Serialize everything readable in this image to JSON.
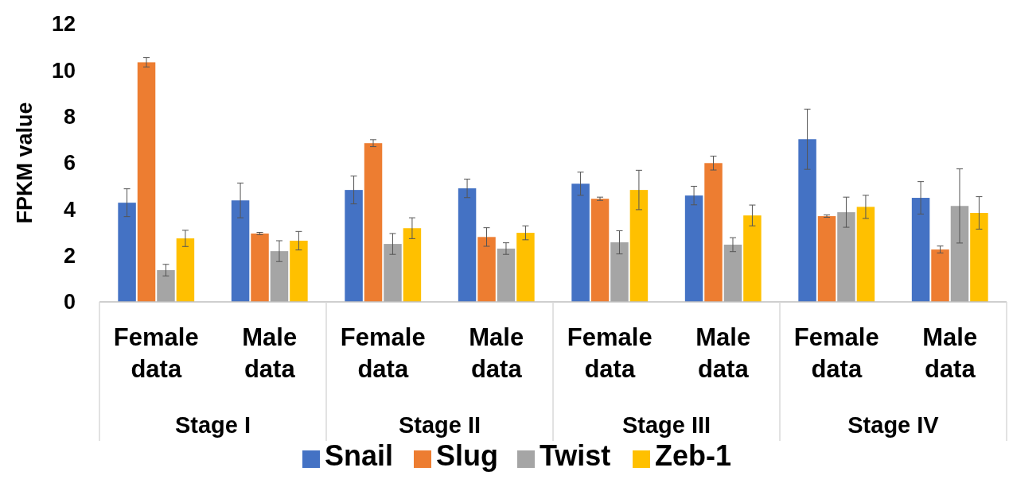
{
  "chart_data": {
    "type": "bar",
    "ylabel": "FPKM value",
    "categories": [
      "Female data",
      "Male data",
      "Female data",
      "Male data",
      "Female data",
      "Male data",
      "Female data",
      "Male data"
    ],
    "annotations": [
      "Stage I",
      "Stage II",
      "Stage III",
      "Stage IV"
    ],
    "ylim": [
      0,
      12
    ],
    "yticks": [
      0,
      2,
      4,
      6,
      8,
      10,
      12
    ],
    "legend": "bottom",
    "grid": false,
    "series": [
      {
        "name": "Snail",
        "color": "#4472c4",
        "values": [
          4.28,
          4.38,
          4.83,
          4.9,
          5.1,
          4.59,
          7.02,
          4.49
        ],
        "errors": [
          0.6,
          0.75,
          0.6,
          0.4,
          0.5,
          0.4,
          1.3,
          0.7
        ]
      },
      {
        "name": "Slug",
        "color": "#ed7d31",
        "values": [
          10.34,
          2.95,
          6.85,
          2.8,
          4.45,
          5.99,
          3.7,
          2.26
        ],
        "errors": [
          0.2,
          0.05,
          0.15,
          0.4,
          0.07,
          0.3,
          0.05,
          0.15
        ]
      },
      {
        "name": "Twist",
        "color": "#a5a5a5",
        "values": [
          1.37,
          2.19,
          2.5,
          2.3,
          2.57,
          2.47,
          3.87,
          4.14
        ],
        "errors": [
          0.25,
          0.45,
          0.45,
          0.25,
          0.5,
          0.3,
          0.65,
          1.6
        ]
      },
      {
        "name": "Zeb-1",
        "color": "#ffc000",
        "values": [
          2.74,
          2.64,
          3.18,
          2.98,
          4.83,
          3.73,
          4.1,
          3.84
        ],
        "errors": [
          0.35,
          0.4,
          0.45,
          0.3,
          0.85,
          0.45,
          0.5,
          0.7
        ]
      }
    ]
  }
}
